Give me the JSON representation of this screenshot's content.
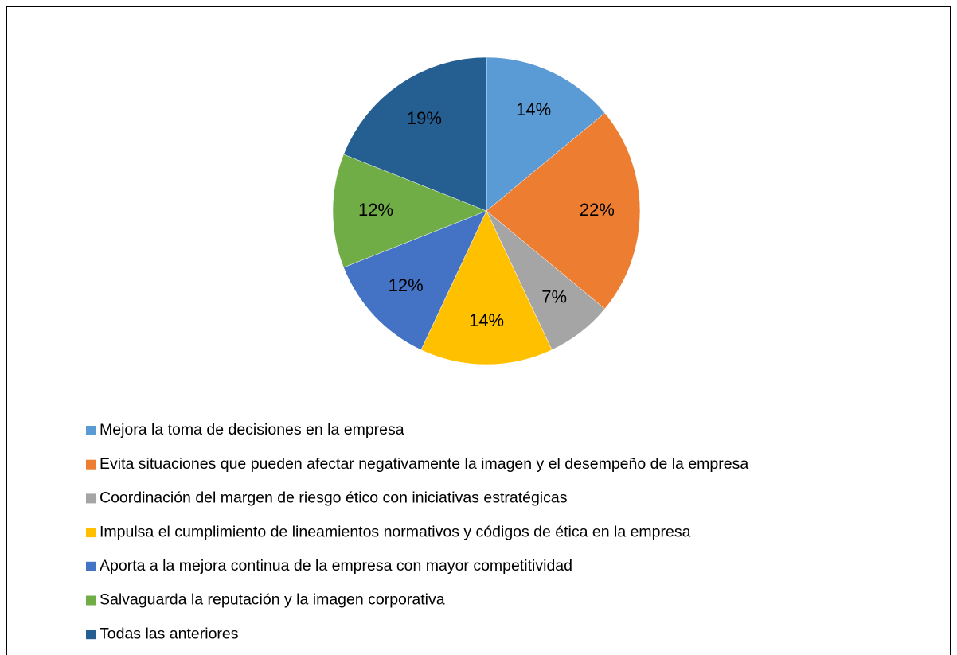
{
  "chart_data": {
    "type": "pie",
    "categories": [
      "Mejora la toma de decisiones en la empresa",
      "Evita situaciones que pueden afectar negativamente la imagen y el desempeño de la empresa",
      "Coordinación del margen de riesgo ético con iniciativas estratégicas",
      "Impulsa el cumplimiento de lineamientos normativos y códigos de ética en la empresa",
      "Aporta a la mejora continua de la empresa con mayor competitividad",
      "Salvaguarda la reputación y la imagen corporativa",
      "Todas las anteriores"
    ],
    "values": [
      14,
      22,
      7,
      14,
      12,
      12,
      19
    ],
    "value_labels": [
      "14%",
      "22%",
      "7%",
      "14%",
      "12%",
      "12%",
      "19%"
    ],
    "colors": [
      "#5b9bd5",
      "#ed7d31",
      "#a5a5a5",
      "#ffc000",
      "#4472c4",
      "#70ad47",
      "#255e91"
    ],
    "legend": "bottom"
  }
}
